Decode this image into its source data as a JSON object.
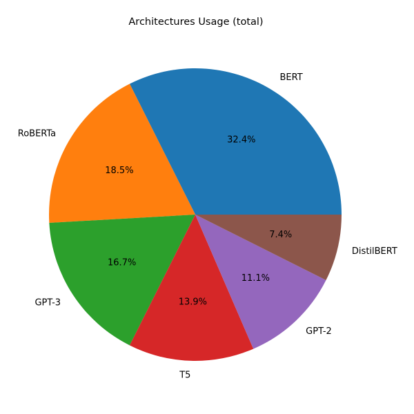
{
  "chart_data": {
    "type": "pie",
    "title": "Architectures Usage (total)",
    "slices": [
      {
        "label": "BERT",
        "value": 32.4,
        "pct_label": "32.4%",
        "color": "#1f77b4"
      },
      {
        "label": "RoBERTa",
        "value": 18.5,
        "pct_label": "18.5%",
        "color": "#ff7f0e"
      },
      {
        "label": "GPT-3",
        "value": 16.7,
        "pct_label": "16.7%",
        "color": "#2ca02c"
      },
      {
        "label": "T5",
        "value": 13.9,
        "pct_label": "13.9%",
        "color": "#d62728"
      },
      {
        "label": "GPT-2",
        "value": 11.1,
        "pct_label": "11.1%",
        "color": "#9467bd"
      },
      {
        "label": "DistilBERT",
        "value": 7.4,
        "pct_label": "7.4%",
        "color": "#8c564b"
      }
    ],
    "start_angle_deg": 0,
    "direction": "counterclockwise",
    "legend": "none"
  }
}
